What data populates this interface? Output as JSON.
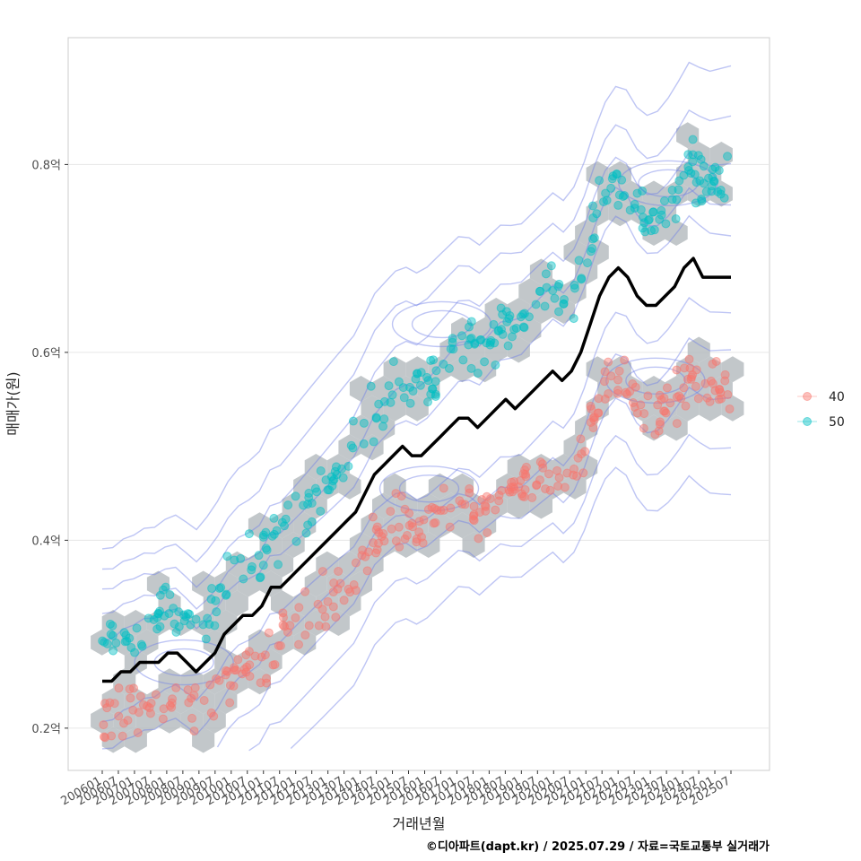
{
  "chart_data": {
    "type": "scatter",
    "xlabel": "거래년월",
    "ylabel": "매매가(원)",
    "caption": "©디아파트(dapt.kr) / 2025.07.29 / 자료=국토교통부 실거래가",
    "x_tick_labels": [
      "200601",
      "200607",
      "200701",
      "200707",
      "200801",
      "200807",
      "200901",
      "200907",
      "201001",
      "201007",
      "201101",
      "201107",
      "201201",
      "201207",
      "201301",
      "201307",
      "201401",
      "201407",
      "201501",
      "201507",
      "201601",
      "201607",
      "201701",
      "201707",
      "201801",
      "201807",
      "201901",
      "201907",
      "202001",
      "202007",
      "202101",
      "202107",
      "202201",
      "202207",
      "202301",
      "202307",
      "202401",
      "202407",
      "202501",
      "202507"
    ],
    "y_ticks": [
      0.2,
      0.4,
      0.6,
      0.8
    ],
    "y_tick_labels": [
      "0.2억",
      "0.4억",
      "0.6억",
      "0.8억"
    ],
    "ylim": [
      0.155,
      0.935
    ],
    "grid": true,
    "legend_position": "right",
    "colors": {
      "g40": "#F8766D",
      "g50": "#00BFC4",
      "hex": "#b3b9bd",
      "contour": "#6f7fe6",
      "trend": "#000000"
    },
    "series": [
      {
        "name": "40",
        "color": "#F8766D"
      },
      {
        "name": "50",
        "color": "#00BFC4"
      }
    ],
    "trend_line": [
      0.25,
      0.25,
      0.26,
      0.26,
      0.27,
      0.27,
      0.27,
      0.28,
      0.28,
      0.27,
      0.26,
      0.27,
      0.28,
      0.3,
      0.31,
      0.32,
      0.32,
      0.33,
      0.35,
      0.35,
      0.36,
      0.37,
      0.38,
      0.39,
      0.4,
      0.41,
      0.42,
      0.43,
      0.45,
      0.47,
      0.48,
      0.49,
      0.5,
      0.49,
      0.49,
      0.5,
      0.51,
      0.52,
      0.53,
      0.53,
      0.52,
      0.53,
      0.54,
      0.55,
      0.54,
      0.55,
      0.56,
      0.57,
      0.58,
      0.57,
      0.58,
      0.6,
      0.63,
      0.66,
      0.68,
      0.69,
      0.68,
      0.66,
      0.65,
      0.65,
      0.66,
      0.67,
      0.69,
      0.7,
      0.68,
      0.68,
      0.68,
      0.68
    ]
  }
}
